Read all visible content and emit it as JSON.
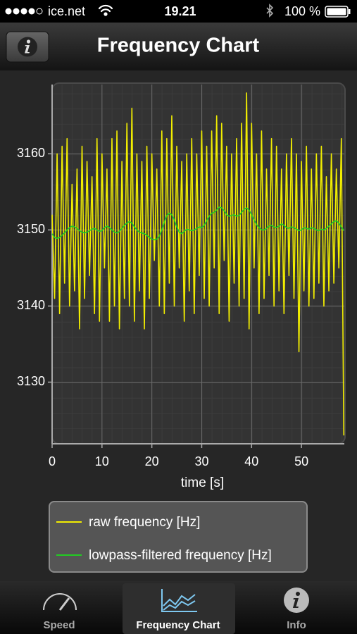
{
  "status_bar": {
    "carrier": "ice.net",
    "time": "19.21",
    "battery": "100 %"
  },
  "nav_bar": {
    "title": "Frequency Chart"
  },
  "chart_data": {
    "type": "line",
    "x_label": "time [s]",
    "x": [
      0,
      0.5,
      1,
      1.5,
      2,
      2.5,
      3,
      3.5,
      4,
      4.5,
      5,
      5.5,
      6,
      6.5,
      7,
      7.5,
      8,
      8.5,
      9,
      9.5,
      10,
      10.5,
      11,
      11.5,
      12,
      12.5,
      13,
      13.5,
      14,
      14.5,
      15,
      15.5,
      16,
      16.5,
      17,
      17.5,
      18,
      18.5,
      19,
      19.5,
      20,
      20.5,
      21,
      21.5,
      22,
      22.5,
      23,
      23.5,
      24,
      24.5,
      25,
      25.5,
      26,
      26.5,
      27,
      27.5,
      28,
      28.5,
      29,
      29.5,
      30,
      30.5,
      31,
      31.5,
      32,
      32.5,
      33,
      33.5,
      34,
      34.5,
      35,
      35.5,
      36,
      36.5,
      37,
      37.5,
      38,
      38.5,
      39,
      39.5,
      40,
      40.5,
      41,
      41.5,
      42,
      42.5,
      43,
      43.5,
      44,
      44.5,
      45,
      45.5,
      46,
      46.5,
      47,
      47.5,
      48,
      48.5,
      49,
      49.5,
      50,
      50.5,
      51,
      51.5,
      52,
      52.5,
      53,
      53.5,
      54,
      54.5,
      55,
      55.5,
      56,
      56.5,
      57,
      57.5,
      58,
      58.5
    ],
    "series": [
      {
        "name": "raw frequency [Hz]",
        "color": "#f2ee00",
        "values": [
          3152,
          3141,
          3160,
          3139,
          3161,
          3143,
          3162,
          3140,
          3156,
          3142,
          3158,
          3137,
          3161,
          3141,
          3159,
          3144,
          3157,
          3139,
          3162,
          3138,
          3160,
          3145,
          3158,
          3138,
          3162,
          3140,
          3163,
          3137,
          3159,
          3141,
          3164,
          3140,
          3166,
          3138,
          3160,
          3142,
          3159,
          3137,
          3161,
          3141,
          3160,
          3146,
          3158,
          3140,
          3163,
          3139,
          3162,
          3143,
          3165,
          3140,
          3161,
          3145,
          3159,
          3138,
          3160,
          3142,
          3162,
          3139,
          3160,
          3144,
          3163,
          3141,
          3161,
          3140,
          3163,
          3145,
          3165,
          3139,
          3164,
          3146,
          3161,
          3138,
          3160,
          3143,
          3162,
          3140,
          3164,
          3141,
          3168,
          3137,
          3164,
          3145,
          3160,
          3139,
          3163,
          3141,
          3158,
          3144,
          3162,
          3140,
          3161,
          3142,
          3158,
          3139,
          3160,
          3144,
          3162,
          3141,
          3160,
          3134,
          3159,
          3142,
          3161,
          3140,
          3158,
          3141,
          3160,
          3143,
          3161,
          3140,
          3157,
          3142,
          3160,
          3143,
          3158,
          3145,
          3162,
          3123
        ]
      },
      {
        "name": "lowpass-filtered frequency [Hz]",
        "color": "#22cc22",
        "values": [
          3149.5,
          3149,
          3148.9,
          3149,
          3149.3,
          3149.6,
          3150,
          3150.3,
          3150.5,
          3150.4,
          3150.2,
          3149.9,
          3149.7,
          3149.6,
          3149.7,
          3149.9,
          3150.1,
          3150.2,
          3150,
          3149.8,
          3149.9,
          3150.3,
          3150.5,
          3150.3,
          3150,
          3149.7,
          3149.6,
          3149.8,
          3150.2,
          3150.6,
          3150.9,
          3151.1,
          3150.9,
          3150.4,
          3150,
          3149.7,
          3149.6,
          3149.5,
          3149.3,
          3149,
          3148.8,
          3148.7,
          3148.8,
          3149.2,
          3150,
          3151,
          3151.9,
          3152.2,
          3152,
          3151.3,
          3150.4,
          3149.7,
          3149.5,
          3149.8,
          3150.1,
          3150,
          3149.9,
          3150,
          3150.2,
          3150.4,
          3150.3,
          3150.6,
          3151.2,
          3151.8,
          3152.2,
          3152.3,
          3152.6,
          3153,
          3152.9,
          3152.5,
          3152,
          3151.8,
          3151.9,
          3152,
          3151.8,
          3151.9,
          3152.3,
          3152.7,
          3152.9,
          3152.6,
          3152,
          3151.3,
          3150.7,
          3150.3,
          3150,
          3150,
          3150.2,
          3150.5,
          3150.6,
          3150.4,
          3150.3,
          3150.5,
          3150.8,
          3150.6,
          3150.3,
          3150.2,
          3150.4,
          3150.3,
          3150.1,
          3149.9,
          3150,
          3150.3,
          3150.2,
          3150.1,
          3150.3,
          3150.2,
          3150,
          3149.9,
          3150.1,
          3150,
          3150.2,
          3150.5,
          3150.8,
          3151.1,
          3151.2,
          3150.9,
          3150.4,
          3149.9
        ]
      }
    ],
    "xlim": [
      0,
      58.6
    ],
    "xticks": [
      0,
      10,
      20,
      30,
      40,
      50
    ],
    "ylim": [
      3121.9,
      3169.1
    ],
    "yticks": [
      3130,
      3140,
      3150,
      3160
    ],
    "grid": true
  },
  "tab_bar": {
    "tabs": [
      "Speed",
      "Frequency Chart",
      "Info"
    ],
    "selected": 1
  }
}
